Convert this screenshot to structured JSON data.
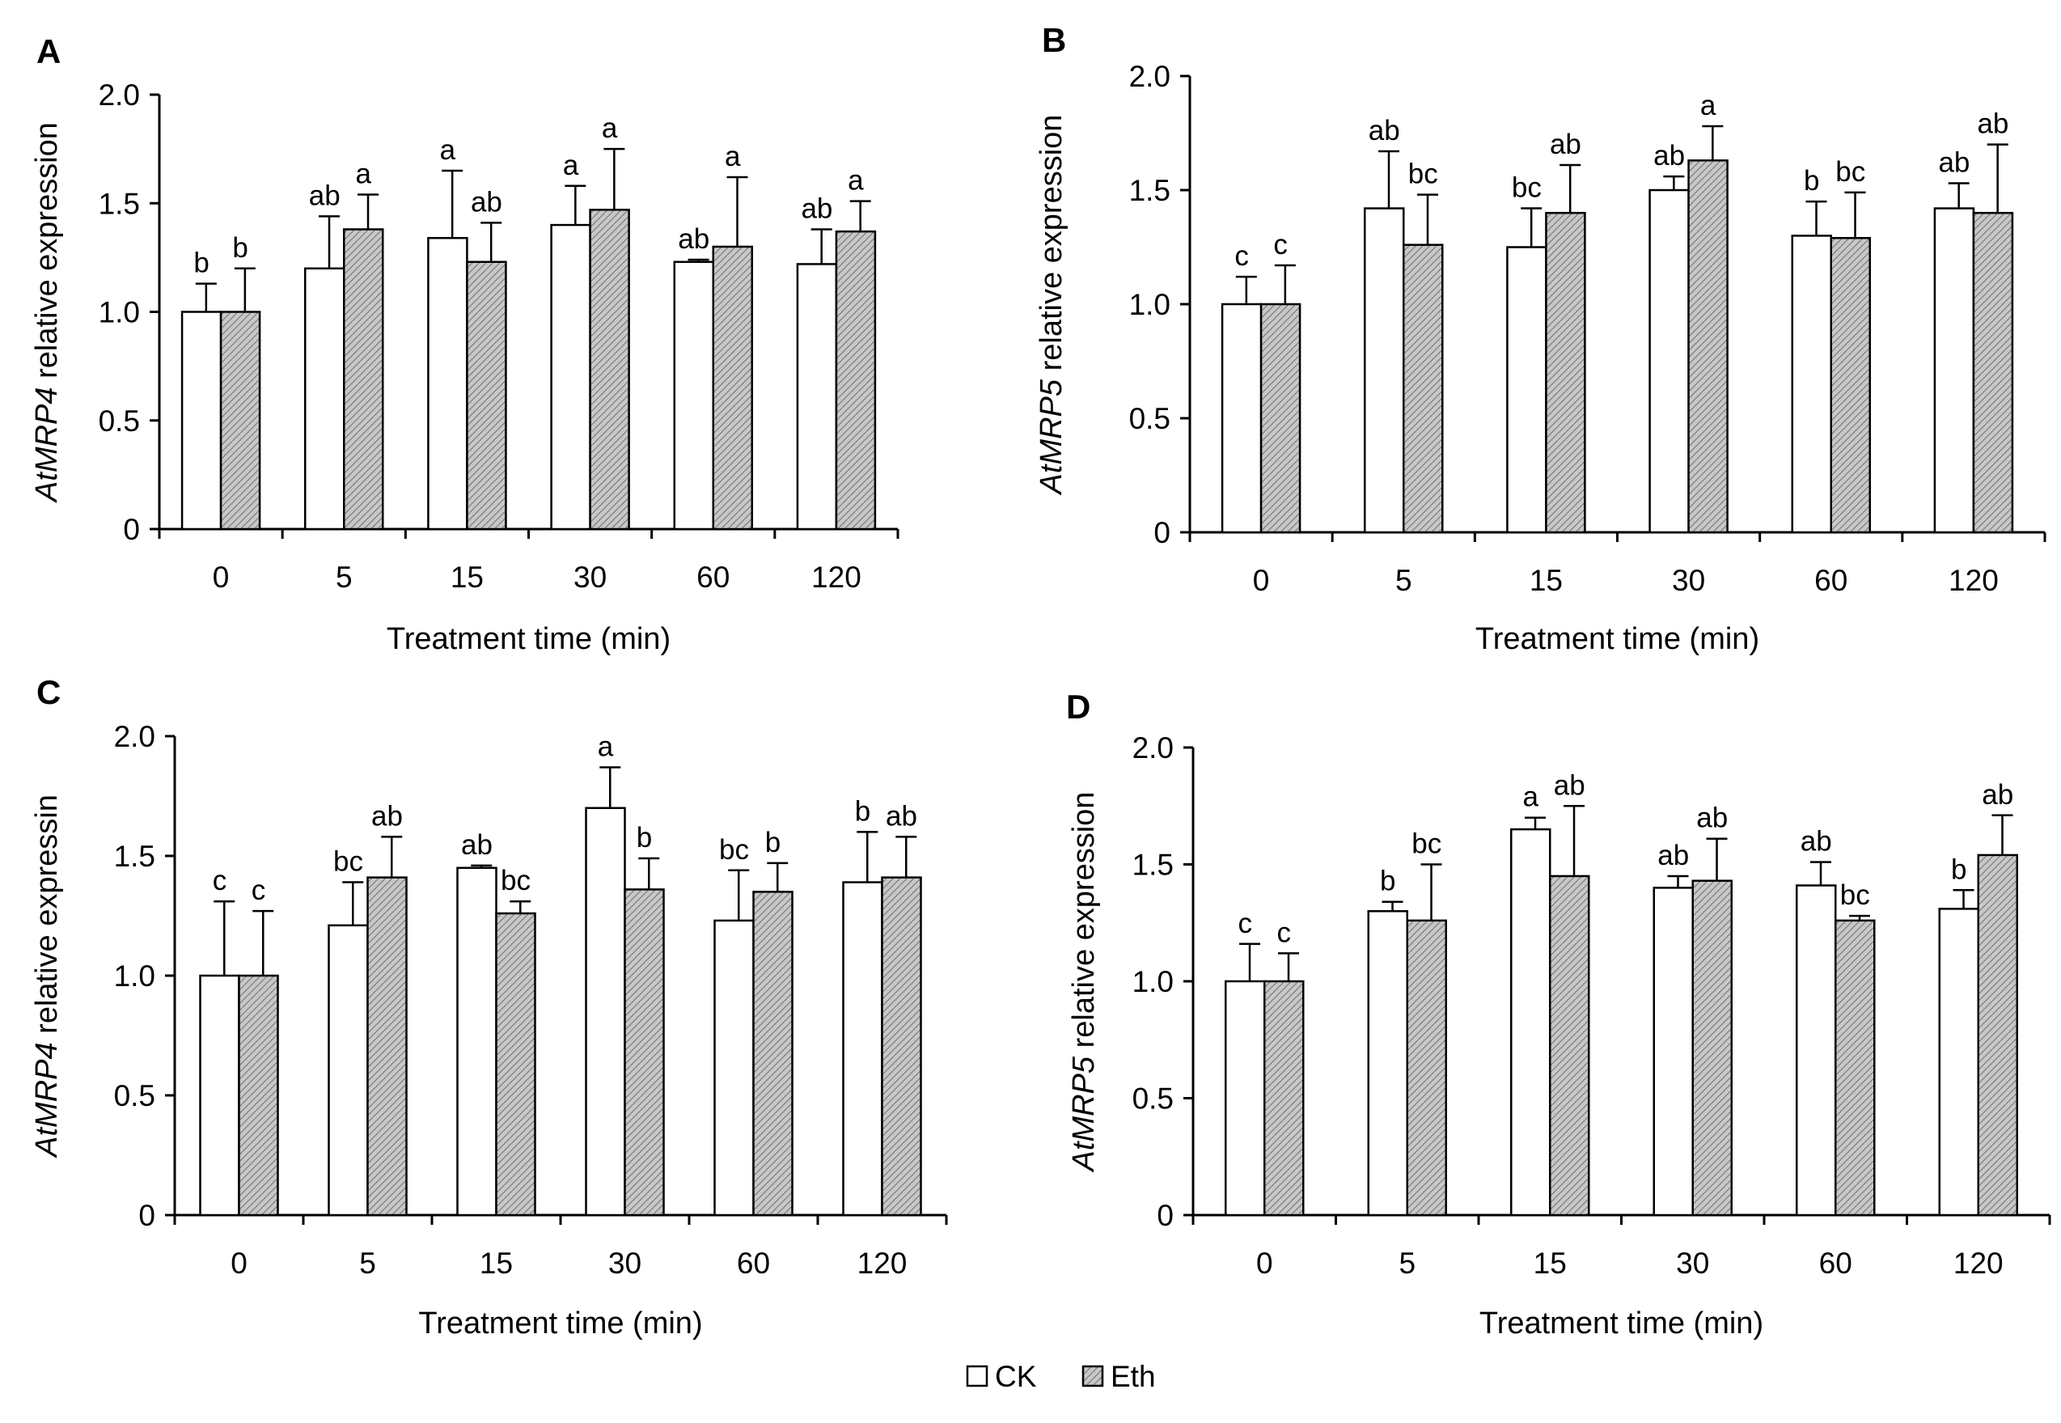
{
  "figure": {
    "legend": [
      {
        "label": "CK",
        "style": "white"
      },
      {
        "label": "Eth",
        "style": "hatched-gray"
      }
    ],
    "colors": {
      "ck_fill": "#ffffff",
      "eth_fill": "#b8b8b8",
      "axis": "#000000"
    }
  },
  "chart_data": [
    {
      "panel": "A",
      "type": "bar",
      "ylabel_italic": "AtMRP4",
      "ylabel_rest": " relative expression",
      "xlabel": "Treatment time (min)",
      "categories": [
        "0",
        "5",
        "15",
        "30",
        "60",
        "120"
      ],
      "ylim": [
        0,
        2.0
      ],
      "yticks": [
        0,
        0.5,
        1.0,
        1.5,
        2.0
      ],
      "ytick_labels": [
        "0",
        "0.5",
        "1.0",
        "1.5",
        "2.0"
      ],
      "series": [
        {
          "name": "CK",
          "values": [
            1.0,
            1.2,
            1.34,
            1.4,
            1.23,
            1.22
          ],
          "errors": [
            0.13,
            0.24,
            0.31,
            0.18,
            0.01,
            0.16
          ],
          "labels": [
            "b",
            "ab",
            "a",
            "a",
            "ab",
            "ab"
          ]
        },
        {
          "name": "Eth",
          "values": [
            1.0,
            1.38,
            1.23,
            1.47,
            1.3,
            1.37
          ],
          "errors": [
            0.2,
            0.16,
            0.18,
            0.28,
            0.32,
            0.14
          ],
          "labels": [
            "b",
            "a",
            "ab",
            "a",
            "a",
            "a"
          ]
        }
      ]
    },
    {
      "panel": "B",
      "type": "bar",
      "ylabel_italic": "AtMRP5",
      "ylabel_rest": " relative expression",
      "xlabel": "Treatment time (min)",
      "categories": [
        "0",
        "5",
        "15",
        "30",
        "60",
        "120"
      ],
      "ylim": [
        0,
        2.0
      ],
      "yticks": [
        0,
        0.5,
        1.0,
        1.5,
        2.0
      ],
      "ytick_labels": [
        "0",
        "0.5",
        "1.0",
        "1.5",
        "2.0"
      ],
      "series": [
        {
          "name": "CK",
          "values": [
            1.0,
            1.42,
            1.25,
            1.5,
            1.3,
            1.42
          ],
          "errors": [
            0.12,
            0.25,
            0.17,
            0.06,
            0.15,
            0.11
          ],
          "labels": [
            "c",
            "ab",
            "bc",
            "ab",
            "b",
            "ab"
          ]
        },
        {
          "name": "Eth",
          "values": [
            1.0,
            1.26,
            1.4,
            1.63,
            1.29,
            1.4
          ],
          "errors": [
            0.17,
            0.22,
            0.21,
            0.15,
            0.2,
            0.3
          ],
          "labels": [
            "c",
            "bc",
            "ab",
            "a",
            "bc",
            "ab"
          ]
        }
      ]
    },
    {
      "panel": "C",
      "type": "bar",
      "ylabel_italic": "AtMRP4",
      "ylabel_rest": " relative expressin",
      "xlabel": "Treatment time (min)",
      "categories": [
        "0",
        "5",
        "15",
        "30",
        "60",
        "120"
      ],
      "ylim": [
        0,
        2.0
      ],
      "yticks": [
        0,
        0.5,
        1.0,
        1.5,
        2.0
      ],
      "ytick_labels": [
        "0",
        "0.5",
        "1.0",
        "1.5",
        "2.0"
      ],
      "series": [
        {
          "name": "CK",
          "values": [
            1.0,
            1.21,
            1.45,
            1.7,
            1.23,
            1.39
          ],
          "errors": [
            0.31,
            0.18,
            0.01,
            0.17,
            0.21,
            0.21
          ],
          "labels": [
            "c",
            "bc",
            "ab",
            "a",
            "bc",
            "b"
          ]
        },
        {
          "name": "Eth",
          "values": [
            1.0,
            1.41,
            1.26,
            1.36,
            1.35,
            1.41
          ],
          "errors": [
            0.27,
            0.17,
            0.05,
            0.13,
            0.12,
            0.17
          ],
          "labels": [
            "c",
            "ab",
            "bc",
            "b",
            "b",
            "ab"
          ]
        }
      ]
    },
    {
      "panel": "D",
      "type": "bar",
      "ylabel_italic": "AtMRP5",
      "ylabel_rest": " relative expression",
      "xlabel": "Treatment time (min)",
      "categories": [
        "0",
        "5",
        "15",
        "30",
        "60",
        "120"
      ],
      "ylim": [
        0,
        2.0
      ],
      "yticks": [
        0,
        0.5,
        1.0,
        1.5,
        2.0
      ],
      "ytick_labels": [
        "0",
        "0.5",
        "1.0",
        "1.5",
        "2.0"
      ],
      "series": [
        {
          "name": "CK",
          "values": [
            1.0,
            1.3,
            1.65,
            1.4,
            1.41,
            1.31
          ],
          "errors": [
            0.16,
            0.04,
            0.05,
            0.05,
            0.1,
            0.08
          ],
          "labels": [
            "c",
            "b",
            "a",
            "ab",
            "ab",
            "b"
          ]
        },
        {
          "name": "Eth",
          "values": [
            1.0,
            1.26,
            1.45,
            1.43,
            1.26,
            1.54
          ],
          "errors": [
            0.12,
            0.24,
            0.3,
            0.18,
            0.02,
            0.17
          ],
          "labels": [
            "c",
            "bc",
            "ab",
            "ab",
            "bc",
            "ab"
          ]
        }
      ]
    }
  ]
}
